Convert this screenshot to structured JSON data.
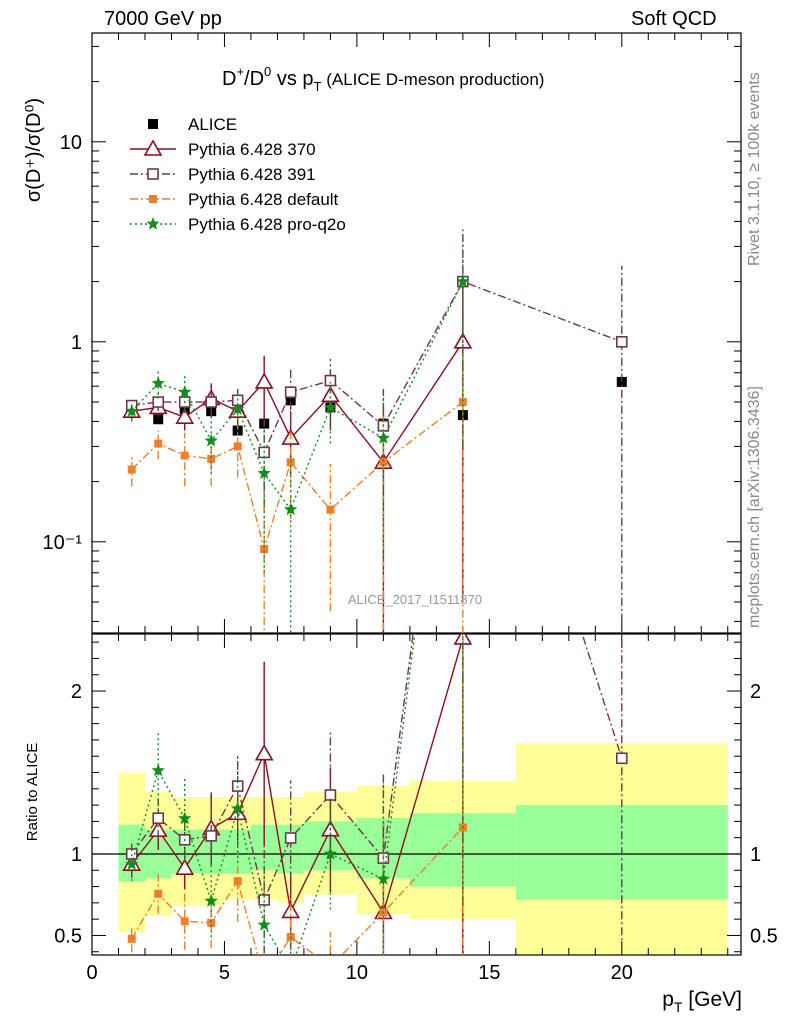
{
  "header": {
    "left": "7000 GeV pp",
    "right": "Soft QCD"
  },
  "side_labels": {
    "rivet": "Rivet 3.1.10, ≥ 100k events",
    "mcplots": "mcplots.cern.ch [arXiv:1306.3436]"
  },
  "chart_data": {
    "type": "scatter",
    "title": "D⁺/D⁰ vs p_T (ALICE D-meson production)",
    "title_main": "D",
    "title_sup1": "+",
    "title_mid": "/D",
    "title_sup2": "0",
    "title_vs": " vs p",
    "title_sub": "T",
    "title_rest": " (ALICE D-meson production)",
    "ylabel": "σ(D⁺)/σ(D⁰)",
    "ratio_ylabel": "Ratio to ALICE",
    "xlabel": "p_T [GeV]",
    "xlabel_main": "p",
    "xlabel_sub": "T",
    "xlabel_unit": " [GeV]",
    "analysis_label": "ALICE_2017_I1511870",
    "xlim": [
      0,
      24.5
    ],
    "ylim": [
      0.035,
      35
    ],
    "y_scale": "log",
    "ratio_ylim": [
      0.38,
      2.35
    ],
    "x_ticks": [
      "0",
      "5",
      "10",
      "15",
      "20"
    ],
    "y_ticks": [
      {
        "value": 10,
        "label": "10"
      },
      {
        "value": 1,
        "label": "1"
      },
      {
        "value": 0.1,
        "label": "10⁻¹"
      }
    ],
    "ratio_ticks": [
      {
        "value": 2,
        "label": "2"
      },
      {
        "value": 1,
        "label": "1"
      },
      {
        "value": 0.5,
        "label": "0.5"
      }
    ],
    "legend_placement": "top-left",
    "x": [
      1.5,
      2.5,
      3.5,
      4.5,
      5.5,
      6.5,
      7.5,
      9,
      11,
      14,
      20
    ],
    "bins": [
      [
        1,
        2
      ],
      [
        2,
        3
      ],
      [
        3,
        4
      ],
      [
        4,
        5
      ],
      [
        5,
        6
      ],
      [
        6,
        7
      ],
      [
        7,
        8
      ],
      [
        8,
        10
      ],
      [
        10,
        12
      ],
      [
        12,
        16
      ],
      [
        16,
        24
      ]
    ],
    "data": {
      "name": "ALICE",
      "values": [
        0.48,
        0.41,
        0.46,
        0.45,
        0.36,
        0.39,
        0.51,
        0.47,
        0.39,
        0.43,
        0.63
      ],
      "band_inner_ratio": [
        [
          0.83,
          1.18
        ],
        [
          0.85,
          1.15
        ],
        [
          0.88,
          1.15
        ],
        [
          0.88,
          1.15
        ],
        [
          0.88,
          1.15
        ],
        [
          0.9,
          1.18
        ],
        [
          0.88,
          1.18
        ],
        [
          0.9,
          1.2
        ],
        [
          0.85,
          1.22
        ],
        [
          0.8,
          1.25
        ],
        [
          0.72,
          1.3
        ]
      ],
      "band_outer_ratio": [
        [
          0.52,
          1.5
        ],
        [
          0.62,
          1.38
        ],
        [
          0.68,
          1.35
        ],
        [
          0.68,
          1.35
        ],
        [
          0.72,
          1.35
        ],
        [
          0.72,
          1.35
        ],
        [
          0.7,
          1.35
        ],
        [
          0.75,
          1.38
        ],
        [
          0.63,
          1.42
        ],
        [
          0.6,
          1.45
        ],
        [
          0.36,
          1.68
        ]
      ]
    },
    "series": [
      {
        "name": "Pythia 6.428 370",
        "color": "#8b0f1f",
        "marker": "triangle",
        "dash": "",
        "values": [
          0.45,
          0.47,
          0.42,
          0.52,
          0.45,
          0.63,
          0.33,
          0.54,
          0.25,
          1.0,
          null
        ],
        "errors": [
          0.04,
          0.05,
          0.06,
          0.1,
          0.07,
          0.22,
          0.12,
          0.18,
          0.22,
          0.95,
          null
        ]
      },
      {
        "name": "Pythia 6.428 391",
        "color": "#6b3a4a",
        "marker": "square-open",
        "dash": "8,3,2,3",
        "values": [
          0.48,
          0.5,
          0.5,
          0.5,
          0.51,
          0.28,
          0.56,
          0.64,
          0.38,
          2.0,
          1.0
        ],
        "errors": [
          0.04,
          0.05,
          0.06,
          0.08,
          0.07,
          0.13,
          0.18,
          0.18,
          0.2,
          1.5,
          1.4
        ]
      },
      {
        "name": "Pythia 6.428 default",
        "color": "#f07f2a",
        "marker": "square-filled",
        "dash": "8,3,2,3",
        "values": [
          0.23,
          0.31,
          0.27,
          0.26,
          0.3,
          0.092,
          0.25,
          0.145,
          0.25,
          0.5,
          null
        ],
        "errors": [
          0.04,
          0.05,
          0.08,
          0.07,
          0.09,
          0.07,
          0.12,
          0.1,
          0.22,
          0.48,
          null
        ]
      },
      {
        "name": "Pythia 6.428 pro-q2o",
        "color": "#138c1e",
        "marker": "star",
        "dash": "2,3",
        "values": [
          0.45,
          0.62,
          0.56,
          0.32,
          0.46,
          0.22,
          0.145,
          0.47,
          0.33,
          2.0,
          null
        ],
        "errors": [
          0.05,
          0.1,
          0.12,
          0.1,
          0.12,
          0.15,
          0.12,
          0.16,
          0.25,
          1.7,
          null
        ]
      }
    ]
  }
}
